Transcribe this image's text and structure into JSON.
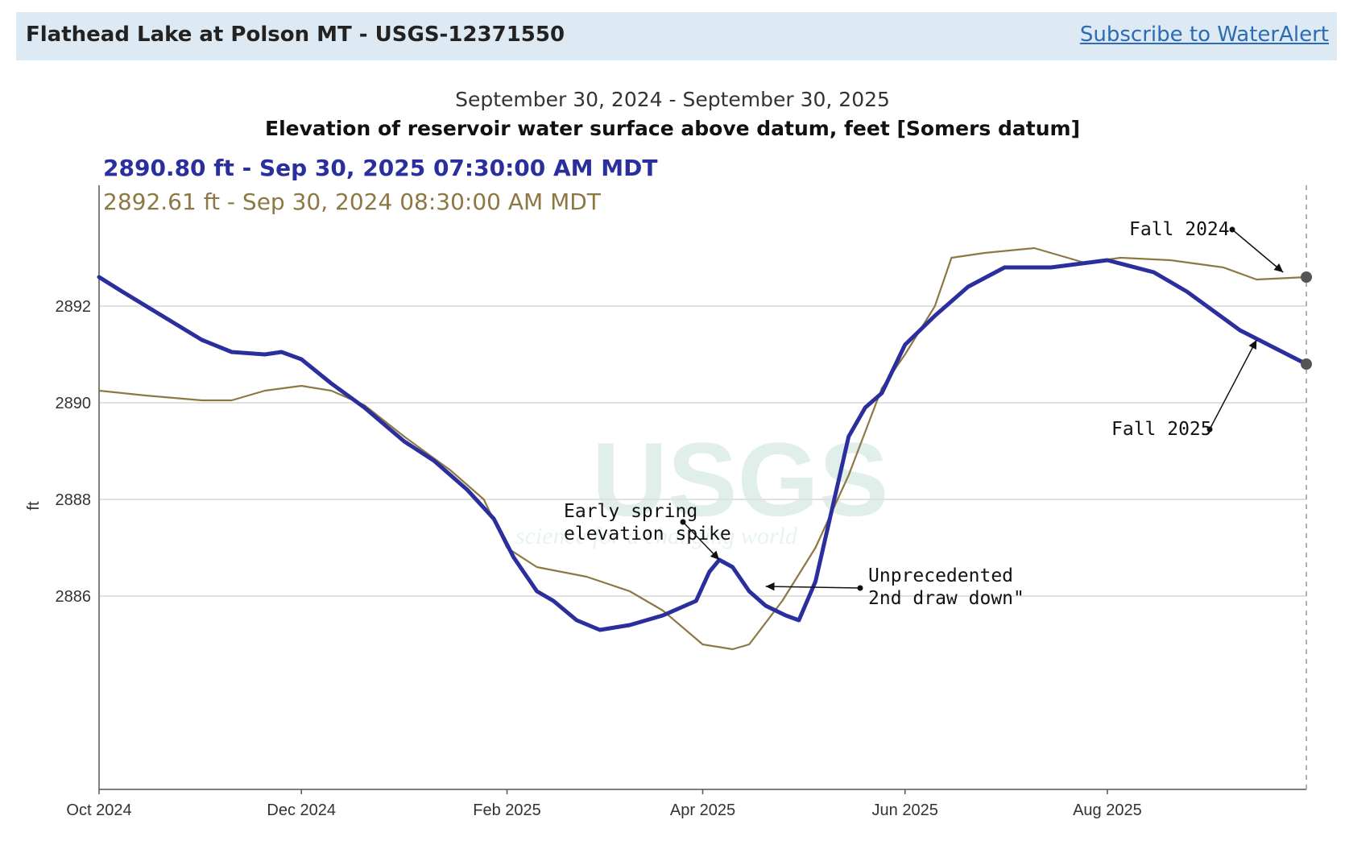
{
  "header": {
    "title": "Flathead Lake at Polson MT - USGS-12371550",
    "subscribe_label": "Subscribe to WaterAlert"
  },
  "chart_data": {
    "type": "line",
    "date_range": "September 30, 2024 - September 30, 2025",
    "title": "Elevation of reservoir water surface above datum, feet [Somers datum]",
    "ylabel": "ft",
    "xlabel": "",
    "x_start": "2024-10-01",
    "x_end": "2025-09-30",
    "ylim": [
      2882,
      2894.5
    ],
    "yticks": [
      2886,
      2888,
      2890,
      2892
    ],
    "xticks": [
      {
        "label": "Oct 2024",
        "date": "2024-10-01"
      },
      {
        "label": "Dec 2024",
        "date": "2024-12-01"
      },
      {
        "label": "Feb 2025",
        "date": "2025-02-01"
      },
      {
        "label": "Apr 2025",
        "date": "2025-04-01"
      },
      {
        "label": "Jun 2025",
        "date": "2025-06-01"
      },
      {
        "label": "Aug 2025",
        "date": "2025-08-01"
      }
    ],
    "grid": true,
    "watermark": {
      "text": "USGS",
      "subtext": "science for a changing world"
    },
    "tooltip": {
      "current": "2890.80 ft - Sep 30, 2025 07:30:00 AM MDT",
      "prior": "2892.61 ft - Sep 30, 2024 08:30:00 AM MDT"
    },
    "series": [
      {
        "color": "#2b2f9e",
        "points": [
          [
            "2024-10-01",
            2892.6
          ],
          [
            "2024-10-08",
            2892.3
          ],
          [
            "2024-10-20",
            2891.8
          ],
          [
            "2024-11-01",
            2891.3
          ],
          [
            "2024-11-10",
            2891.05
          ],
          [
            "2024-11-20",
            2891.0
          ],
          [
            "2024-11-25",
            2891.05
          ],
          [
            "2024-12-01",
            2890.9
          ],
          [
            "2024-12-10",
            2890.4
          ],
          [
            "2024-12-20",
            2889.9
          ],
          [
            "2025-01-01",
            2889.2
          ],
          [
            "2025-01-10",
            2888.8
          ],
          [
            "2025-01-20",
            2888.2
          ],
          [
            "2025-01-28",
            2887.6
          ],
          [
            "2025-02-03",
            2886.8
          ],
          [
            "2025-02-10",
            2886.1
          ],
          [
            "2025-02-15",
            2885.9
          ],
          [
            "2025-02-22",
            2885.5
          ],
          [
            "2025-03-01",
            2885.3
          ],
          [
            "2025-03-10",
            2885.4
          ],
          [
            "2025-03-20",
            2885.6
          ],
          [
            "2025-03-30",
            2885.9
          ],
          [
            "2025-04-03",
            2886.5
          ],
          [
            "2025-04-06",
            2886.75
          ],
          [
            "2025-04-10",
            2886.6
          ],
          [
            "2025-04-15",
            2886.1
          ],
          [
            "2025-04-20",
            2885.8
          ],
          [
            "2025-04-26",
            2885.6
          ],
          [
            "2025-04-30",
            2885.5
          ],
          [
            "2025-05-05",
            2886.3
          ],
          [
            "2025-05-10",
            2887.8
          ],
          [
            "2025-05-15",
            2889.3
          ],
          [
            "2025-05-20",
            2889.9
          ],
          [
            "2025-05-25",
            2890.2
          ],
          [
            "2025-06-01",
            2891.2
          ],
          [
            "2025-06-10",
            2891.8
          ],
          [
            "2025-06-20",
            2892.4
          ],
          [
            "2025-07-01",
            2892.8
          ],
          [
            "2025-07-15",
            2892.8
          ],
          [
            "2025-08-01",
            2892.95
          ],
          [
            "2025-08-15",
            2892.7
          ],
          [
            "2025-08-25",
            2892.3
          ],
          [
            "2025-09-10",
            2891.5
          ],
          [
            "2025-09-30",
            2890.8
          ]
        ]
      },
      {
        "color": "#8d7843",
        "points": [
          [
            "2024-10-01",
            2890.25
          ],
          [
            "2024-10-15",
            2890.15
          ],
          [
            "2024-11-01",
            2890.05
          ],
          [
            "2024-11-10",
            2890.05
          ],
          [
            "2024-11-20",
            2890.25
          ],
          [
            "2024-12-01",
            2890.35
          ],
          [
            "2024-12-10",
            2890.25
          ],
          [
            "2024-12-20",
            2889.95
          ],
          [
            "2025-01-01",
            2889.3
          ],
          [
            "2025-01-15",
            2888.6
          ],
          [
            "2025-01-25",
            2888.0
          ],
          [
            "2025-02-01",
            2887.0
          ],
          [
            "2025-02-10",
            2886.6
          ],
          [
            "2025-02-25",
            2886.4
          ],
          [
            "2025-03-10",
            2886.1
          ],
          [
            "2025-03-20",
            2885.7
          ],
          [
            "2025-04-01",
            2885.0
          ],
          [
            "2025-04-10",
            2884.9
          ],
          [
            "2025-04-15",
            2885.0
          ],
          [
            "2025-04-25",
            2885.9
          ],
          [
            "2025-05-05",
            2887.0
          ],
          [
            "2025-05-15",
            2888.5
          ],
          [
            "2025-05-25",
            2890.3
          ],
          [
            "2025-06-01",
            2891.0
          ],
          [
            "2025-06-10",
            2892.0
          ],
          [
            "2025-06-15",
            2893.0
          ],
          [
            "2025-06-25",
            2893.1
          ],
          [
            "2025-07-10",
            2893.2
          ],
          [
            "2025-07-25",
            2892.9
          ],
          [
            "2025-08-05",
            2893.0
          ],
          [
            "2025-08-20",
            2892.95
          ],
          [
            "2025-09-05",
            2892.8
          ],
          [
            "2025-09-15",
            2892.55
          ],
          [
            "2025-09-30",
            2892.6
          ]
        ]
      }
    ],
    "annotations": [
      {
        "lines": [
          "Fall 2024"
        ],
        "target": [
          "2025-09-23",
          2892.7
        ]
      },
      {
        "lines": [
          "Fall 2025"
        ],
        "target": [
          "2025-09-15",
          2891.3
        ]
      },
      {
        "lines": [
          "Early spring",
          "elevation spike"
        ],
        "target": [
          "2025-04-06",
          2886.75
        ]
      },
      {
        "lines": [
          "Unprecedented",
          "2nd draw down\""
        ],
        "target": [
          "2025-04-20",
          2886.2
        ]
      }
    ]
  }
}
